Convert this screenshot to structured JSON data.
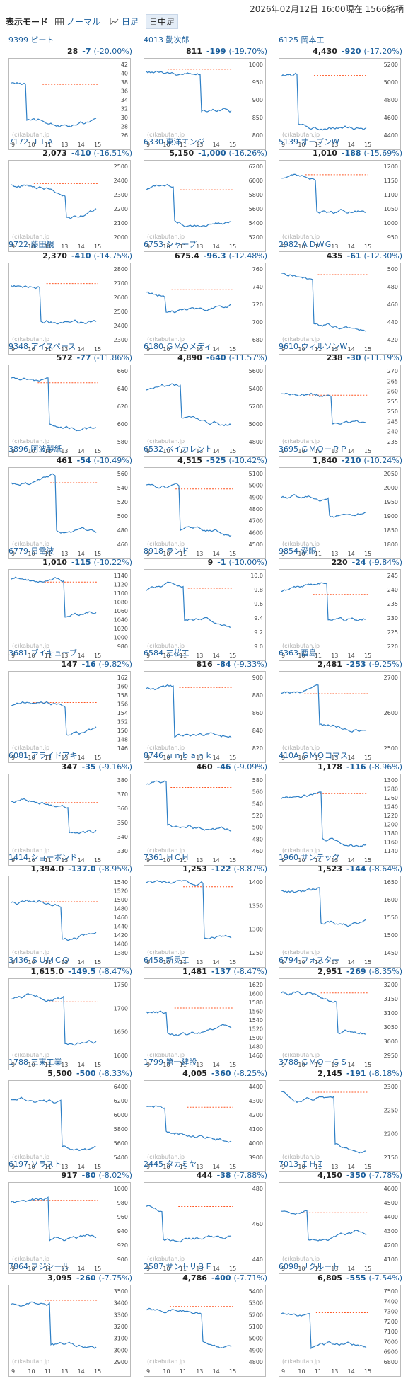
{
  "header": {
    "mode_label": "表示モード",
    "modes": [
      {
        "label": "ノーマル",
        "icon": "grid-icon",
        "active": false
      },
      {
        "label": "日足",
        "icon": "line-chart-icon",
        "active": false
      },
      {
        "label": "日中足",
        "icon": "none",
        "active": true
      }
    ],
    "timestamp": "2026年02月12日 16:00現在",
    "stock_count": "1566銘柄"
  },
  "colors": {
    "link": "#1a5e9c",
    "line": "#2d7fc6",
    "prev_close": "#ff5522"
  },
  "chart_common": {
    "x_ticks": [
      "9",
      "10",
      "11",
      "13",
      "14",
      "15"
    ],
    "watermark": "(c)kabutan.jp"
  },
  "stocks": [
    {
      "code": "9399",
      "name": "ビート",
      "price": "28",
      "diff": "-7",
      "rate": "(-20.00%)",
      "y_ticks": [
        "42",
        "40",
        "38",
        "36",
        "34",
        "32",
        "30",
        "28",
        "26"
      ]
    },
    {
      "code": "4013",
      "name": "勤次郎",
      "price": "811",
      "diff": "-199",
      "rate": "(-19.70%)",
      "y_ticks": [
        "1000",
        "950",
        "900",
        "850",
        "800"
      ]
    },
    {
      "code": "6125",
      "name": "岡本工",
      "price": "4,430",
      "diff": "-920",
      "rate": "(-17.20%)",
      "y_ticks": [
        "5200",
        "5000",
        "4800",
        "4600",
        "4400"
      ]
    },
    {
      "code": "7172",
      "name": "ＪＩＡ",
      "price": "2,073",
      "diff": "-410",
      "rate": "(-16.51%)",
      "y_ticks": [
        "2500",
        "2400",
        "2300",
        "2200",
        "2100",
        "2000"
      ]
    },
    {
      "code": "6330",
      "name": "東洋エンジ",
      "price": "5,150",
      "diff": "-1,000",
      "rate": "(-16.26%)",
      "y_ticks": [
        "6200",
        "6000",
        "5800",
        "5600",
        "5400",
        "5200"
      ]
    },
    {
      "code": "5139",
      "name": "オープンW",
      "price": "1,010",
      "diff": "-188",
      "rate": "(-15.69%)",
      "y_ticks": [
        "1200",
        "1150",
        "1100",
        "1050",
        "1000",
        "950"
      ]
    },
    {
      "code": "9722",
      "name": "藤田観",
      "price": "2,370",
      "diff": "-410",
      "rate": "(-14.75%)",
      "y_ticks": [
        "2800",
        "2700",
        "2600",
        "2500",
        "2400",
        "2300"
      ]
    },
    {
      "code": "6753",
      "name": "シャープ",
      "price": "675.4",
      "diff": "-96.3",
      "rate": "(-12.48%)",
      "y_ticks": [
        "760",
        "740",
        "720",
        "700",
        "680"
      ]
    },
    {
      "code": "2982",
      "name": "ＡＤＷＧ",
      "price": "435",
      "diff": "-61",
      "rate": "(-12.30%)",
      "y_ticks": [
        "500",
        "480",
        "460",
        "440",
        "420"
      ]
    },
    {
      "code": "9348",
      "name": "アイスペース",
      "price": "572",
      "diff": "-77",
      "rate": "(-11.86%)",
      "y_ticks": [
        "660",
        "640",
        "620",
        "600",
        "580"
      ]
    },
    {
      "code": "6180",
      "name": "ＧＭＯメディ",
      "price": "4,890",
      "diff": "-640",
      "rate": "(-11.57%)",
      "y_ticks": [
        "5600",
        "5400",
        "5200",
        "5000",
        "4800"
      ]
    },
    {
      "code": "9610",
      "name": "ウィルソンW",
      "price": "238",
      "diff": "-30",
      "rate": "(-11.19%)",
      "y_ticks": [
        "270",
        "265",
        "260",
        "255",
        "250",
        "245",
        "240",
        "235"
      ]
    },
    {
      "code": "3896",
      "name": "阿波製紙",
      "price": "461",
      "diff": "-54",
      "rate": "(-10.49%)",
      "y_ticks": [
        "560",
        "540",
        "520",
        "500",
        "480",
        "460"
      ]
    },
    {
      "code": "6532",
      "name": "ベイカレント",
      "price": "4,515",
      "diff": "-525",
      "rate": "(-10.42%)",
      "y_ticks": [
        "5100",
        "5000",
        "4900",
        "4800",
        "4700",
        "4600",
        "4500"
      ]
    },
    {
      "code": "3695",
      "name": "ＧＭＯ－ＰＰ",
      "price": "1,840",
      "diff": "-210",
      "rate": "(-10.24%)",
      "y_ticks": [
        "2050",
        "2000",
        "1950",
        "1900",
        "1850",
        "1800"
      ]
    },
    {
      "code": "6779",
      "name": "日電波",
      "price": "1,010",
      "diff": "-115",
      "rate": "(-10.22%)",
      "y_ticks": [
        "1140",
        "1120",
        "1100",
        "1080",
        "1060",
        "1040",
        "1020",
        "1000",
        "980"
      ]
    },
    {
      "code": "8918",
      "name": "ランド",
      "price": "9",
      "diff": "-1",
      "rate": "(-10.00%)",
      "y_ticks": [
        "10.0",
        "9.8",
        "9.6",
        "9.4",
        "9.2",
        "9.0"
      ]
    },
    {
      "code": "9854",
      "name": "愛眼",
      "price": "220",
      "diff": "-24",
      "rate": "(-9.84%)",
      "y_ticks": [
        "245",
        "240",
        "235",
        "230",
        "225",
        "220"
      ]
    },
    {
      "code": "3681",
      "name": "ブイキューブ",
      "price": "147",
      "diff": "-16",
      "rate": "(-9.82%)",
      "y_ticks": [
        "162",
        "160",
        "158",
        "156",
        "154",
        "152",
        "150",
        "148",
        "146"
      ]
    },
    {
      "code": "6584",
      "name": "三桜工",
      "price": "816",
      "diff": "-84",
      "rate": "(-9.33%)",
      "y_ticks": [
        "900",
        "880",
        "860",
        "840",
        "820"
      ]
    },
    {
      "code": "6363",
      "name": "酉島",
      "price": "2,481",
      "diff": "-253",
      "rate": "(-9.25%)",
      "y_ticks": [
        "2700",
        "2600",
        "2500"
      ]
    },
    {
      "code": "6081",
      "name": "アライドアキ",
      "price": "347",
      "diff": "-35",
      "rate": "(-9.16%)",
      "y_ticks": [
        "380",
        "370",
        "360",
        "350",
        "340",
        "330"
      ]
    },
    {
      "code": "8746",
      "name": "ｕｎｂａｎｋ",
      "price": "460",
      "diff": "-46",
      "rate": "(-9.09%)",
      "y_ticks": [
        "580",
        "560",
        "540",
        "520",
        "500",
        "480",
        "460"
      ]
    },
    {
      "code": "410A",
      "name": "ＧＭＯコマス",
      "price": "1,178",
      "diff": "-116",
      "rate": "(-8.96%)",
      "y_ticks": [
        "1300",
        "1280",
        "1260",
        "1240",
        "1220",
        "1200",
        "1180",
        "1160",
        "1140"
      ]
    },
    {
      "code": "1414",
      "name": "ショーボンド",
      "price": "1,394.0",
      "diff": "-137.0",
      "rate": "(-8.95%)",
      "y_ticks": [
        "1540",
        "1520",
        "1500",
        "1480",
        "1460",
        "1440",
        "1420",
        "1400",
        "1380"
      ]
    },
    {
      "code": "7361",
      "name": "ＨＣＨ",
      "price": "1,253",
      "diff": "-122",
      "rate": "(-8.87%)",
      "y_ticks": [
        "1400",
        "1350",
        "1300",
        "1250"
      ]
    },
    {
      "code": "1960",
      "name": "サンテック",
      "price": "1,523",
      "diff": "-144",
      "rate": "(-8.64%)",
      "y_ticks": [
        "1650",
        "1600",
        "1550",
        "1500",
        "1450"
      ]
    },
    {
      "code": "3436",
      "name": "ＳＵＭＣＯ",
      "price": "1,615.0",
      "diff": "-149.5",
      "rate": "(-8.47%)",
      "y_ticks": [
        "1750",
        "1700",
        "1650",
        "1600"
      ]
    },
    {
      "code": "6458",
      "name": "新晃工",
      "price": "1,481",
      "diff": "-137",
      "rate": "(-8.47%)",
      "y_ticks": [
        "1620",
        "1600",
        "1580",
        "1560",
        "1540",
        "1520",
        "1500",
        "1480",
        "1460"
      ]
    },
    {
      "code": "6794",
      "name": "フォスター",
      "price": "2,951",
      "diff": "-269",
      "rate": "(-8.35%)",
      "y_ticks": [
        "3200",
        "3150",
        "3100",
        "3050",
        "3000",
        "2950"
      ]
    },
    {
      "code": "1788",
      "name": "三東工業",
      "price": "5,500",
      "diff": "-500",
      "rate": "(-8.33%)",
      "y_ticks": [
        "6400",
        "6200",
        "6000",
        "5800",
        "5600",
        "5400"
      ]
    },
    {
      "code": "1799",
      "name": "第一建設",
      "price": "4,005",
      "diff": "-360",
      "rate": "(-8.25%)",
      "y_ticks": [
        "4400",
        "4300",
        "4200",
        "4100",
        "4000",
        "3900"
      ]
    },
    {
      "code": "3788",
      "name": "ＧＭＯ－ＧＳ",
      "price": "2,145",
      "diff": "-191",
      "rate": "(-8.18%)",
      "y_ticks": [
        "2300",
        "2250",
        "2200",
        "2150"
      ]
    },
    {
      "code": "6197",
      "name": "ソラスト",
      "price": "917",
      "diff": "-80",
      "rate": "(-8.02%)",
      "y_ticks": [
        "1000",
        "980",
        "960",
        "940",
        "920",
        "900"
      ]
    },
    {
      "code": "2445",
      "name": "タカミヤ",
      "price": "444",
      "diff": "-38",
      "rate": "(-7.88%)",
      "y_ticks": [
        "480",
        "460",
        "440"
      ]
    },
    {
      "code": "7013",
      "name": "ＩＨＩ",
      "price": "4,150",
      "diff": "-350",
      "rate": "(-7.78%)",
      "y_ticks": [
        "4600",
        "4500",
        "4400",
        "4300",
        "4200",
        "4100"
      ]
    },
    {
      "code": "7864",
      "name": "フジシール",
      "price": "3,095",
      "diff": "-260",
      "rate": "(-7.75%)",
      "y_ticks": [
        "3500",
        "3400",
        "3300",
        "3200",
        "3100",
        "3000",
        "2900"
      ]
    },
    {
      "code": "2587",
      "name": "サントリＢＦ",
      "price": "4,786",
      "diff": "-400",
      "rate": "(-7.71%)",
      "y_ticks": [
        "5400",
        "5300",
        "5200",
        "5100",
        "5000",
        "4900",
        "4800"
      ]
    },
    {
      "code": "6098",
      "name": "リクルート",
      "price": "6,805",
      "diff": "-555",
      "rate": "(-7.54%)",
      "y_ticks": [
        "7500",
        "7400",
        "7300",
        "7200",
        "7100",
        "7000",
        "6900",
        "6800"
      ]
    }
  ]
}
